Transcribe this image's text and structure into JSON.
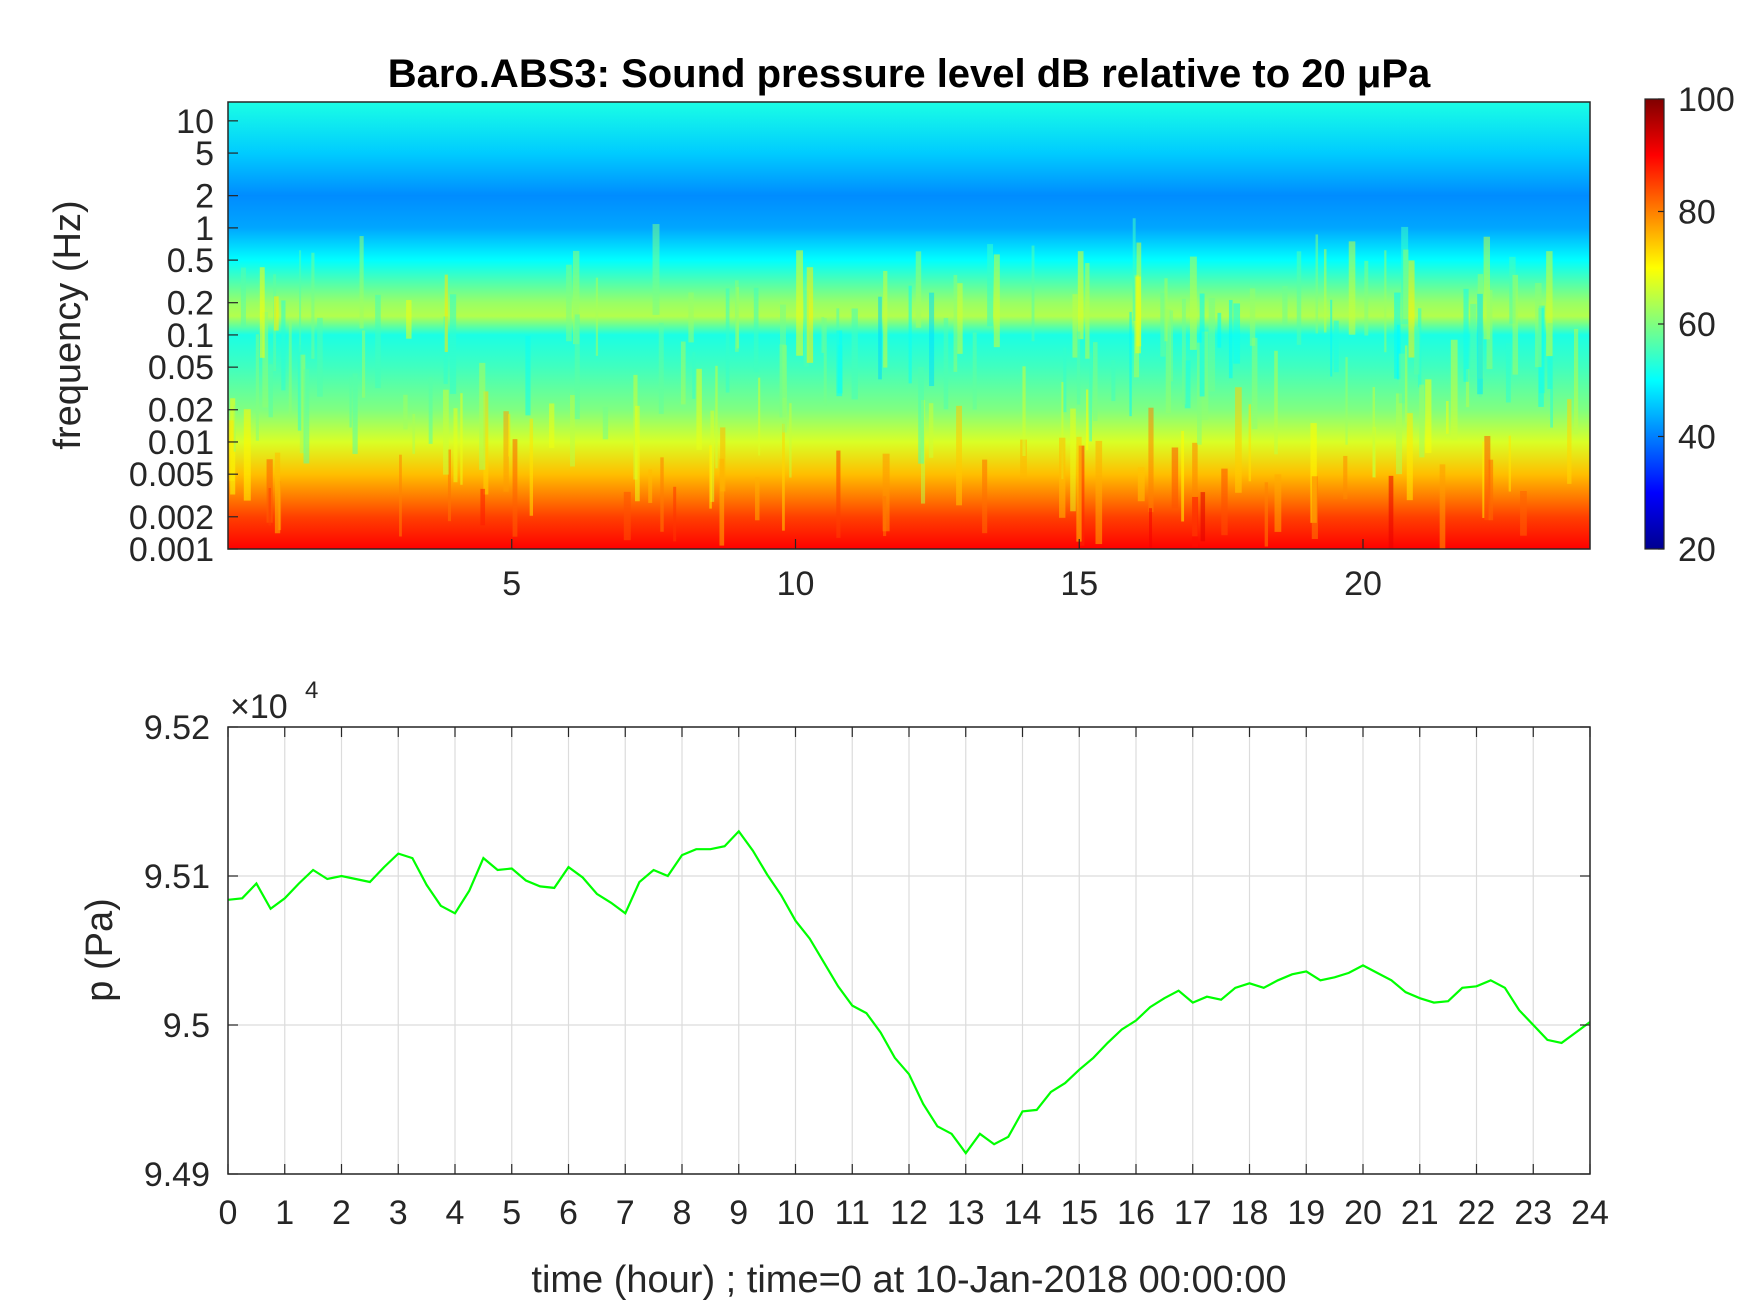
{
  "chart_data": [
    {
      "type": "heatmap",
      "title": "Baro.ABS3: Sound pressure level dB relative to 20 μPa",
      "xlabel": "",
      "ylabel": "frequency (Hz)",
      "xlim": [
        0,
        24
      ],
      "x_ticks": [
        5,
        10,
        15,
        20
      ],
      "ylim": [
        0.001,
        15
      ],
      "yscale": "log",
      "y_ticks": [
        0.001,
        0.002,
        0.005,
        0.01,
        0.02,
        0.05,
        0.1,
        0.2,
        0.5,
        1,
        2,
        5,
        10
      ],
      "y_tick_labels": [
        "0.001",
        "0.002",
        "0.005",
        "0.01",
        "0.02",
        "0.05",
        "0.1",
        "0.2",
        "0.5",
        "1",
        "2",
        "5",
        "10"
      ],
      "colormap": "jet",
      "colorbar": {
        "range": [
          20,
          100
        ],
        "ticks": [
          20,
          40,
          60,
          80,
          100
        ],
        "tick_labels": [
          "20",
          "40",
          "60",
          "80",
          "100"
        ]
      },
      "level_profile_by_frequency": [
        {
          "freq": 0.001,
          "db": 90
        },
        {
          "freq": 0.002,
          "db": 85
        },
        {
          "freq": 0.005,
          "db": 75
        },
        {
          "freq": 0.01,
          "db": 67
        },
        {
          "freq": 0.02,
          "db": 60
        },
        {
          "freq": 0.05,
          "db": 55
        },
        {
          "freq": 0.1,
          "db": 52
        },
        {
          "freq": 0.15,
          "db": 64
        },
        {
          "freq": 0.2,
          "db": 62
        },
        {
          "freq": 0.5,
          "db": 50
        },
        {
          "freq": 1,
          "db": 43
        },
        {
          "freq": 2,
          "db": 41
        },
        {
          "freq": 5,
          "db": 46
        },
        {
          "freq": 15,
          "db": 52
        }
      ]
    },
    {
      "type": "line",
      "title": "",
      "xlabel": "time (hour) ; time=0 at 10-Jan-2018 00:00:00",
      "ylabel": "p (Pa)",
      "xlim": [
        0,
        24
      ],
      "ylim": [
        94900,
        95200
      ],
      "x_ticks": [
        0,
        1,
        2,
        3,
        4,
        5,
        6,
        7,
        8,
        9,
        10,
        11,
        12,
        13,
        14,
        15,
        16,
        17,
        18,
        19,
        20,
        21,
        22,
        23,
        24
      ],
      "y_tick_labels": [
        "9.49",
        "9.5",
        "9.51",
        "9.52"
      ],
      "y_ticks": [
        94900,
        95000,
        95100,
        95200
      ],
      "y_exponent_label": "×10",
      "y_exponent": "4",
      "grid": true,
      "line_color": "#00ff00",
      "series": [
        {
          "x": [
            0,
            0.25,
            0.5,
            0.75,
            1,
            1.25,
            1.5,
            1.75,
            2,
            2.25,
            2.5,
            2.75,
            3,
            3.25,
            3.5,
            3.75,
            4,
            4.25,
            4.5,
            4.75,
            5,
            5.25,
            5.5,
            5.75,
            6,
            6.25,
            6.5,
            6.75,
            7,
            7.25,
            7.5,
            7.75,
            8,
            8.25,
            8.5,
            8.75,
            9,
            9.25,
            9.5,
            9.75,
            10,
            10.25,
            10.5,
            10.75,
            11,
            11.25,
            11.5,
            11.75,
            12,
            12.25,
            12.5,
            12.75,
            13,
            13.25,
            13.5,
            13.75,
            14,
            14.25,
            14.5,
            14.75,
            15,
            15.25,
            15.5,
            15.75,
            16,
            16.25,
            16.5,
            16.75,
            17,
            17.25,
            17.5,
            17.75,
            18,
            18.25,
            18.5,
            18.75,
            19,
            19.25,
            19.5,
            19.75,
            20,
            20.25,
            20.5,
            20.75,
            21,
            21.25,
            21.5,
            21.75,
            22,
            22.25,
            22.5,
            22.75,
            23,
            23.25,
            23.5,
            23.75,
            24
          ],
          "values": [
            95084,
            95085,
            95095,
            95078,
            95085,
            95095,
            95104,
            95098,
            95100,
            95098,
            95096,
            95106,
            95115,
            95112,
            95094,
            95080,
            95075,
            95090,
            95112,
            95104,
            95105,
            95097,
            95093,
            95092,
            95106,
            95099,
            95088,
            95082,
            95075,
            95096,
            95104,
            95100,
            95114,
            95118,
            95118,
            95120,
            95130,
            95117,
            95101,
            95087,
            95070,
            95058,
            95042,
            95026,
            95013,
            95008,
            94995,
            94978,
            94967,
            94947,
            94932,
            94927,
            94914,
            94927,
            94920,
            94925,
            94942,
            94943,
            94955,
            94961,
            94970,
            94978,
            94988,
            94997,
            95003,
            95012,
            95018,
            95023,
            95015,
            95019,
            95017,
            95025,
            95028,
            95025,
            95030,
            95034,
            95036,
            95030,
            95032,
            95035,
            95040,
            95035,
            95030,
            95022,
            95018,
            95015,
            95016,
            95025,
            95026,
            95030,
            95025,
            95010,
            95000,
            94990,
            94988,
            94995,
            95002
          ]
        }
      ]
    }
  ]
}
